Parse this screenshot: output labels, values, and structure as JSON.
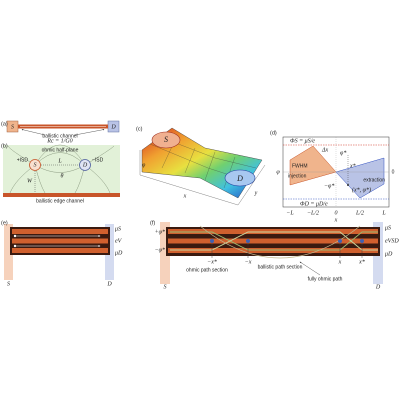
{
  "panels": {
    "a": {
      "label": "(a)",
      "source": "S",
      "drain": "D",
      "caption": "ballistic channel"
    },
    "b": {
      "label": "(b)",
      "resistance": "Rc = 1/G0",
      "region": "ohmic half-plane",
      "source": "S",
      "drain": "D",
      "current_in": "+ISD",
      "current_out": "−ISD",
      "width": "W",
      "length": "L",
      "angle": "θ",
      "edge": "ballistic edge channel"
    },
    "c": {
      "label": "(c)",
      "source": "S",
      "drain": "D",
      "z_axis": "φ",
      "x_axis": "x",
      "y_axis": "y"
    },
    "d": {
      "label": "(d)",
      "phi_s": "ΦS = μS/e",
      "phi_d": "ΦD = μD/e",
      "fwhm": "FWHM",
      "injection": "injection",
      "extraction": "extraction",
      "dx": "Δx",
      "phi_star": "φ*",
      "x_star": "x*",
      "point": "(x*, φ*)",
      "neg_phi_star": "−φ*",
      "y_axis": "φ",
      "zero_right": "0",
      "xticks": [
        "−L",
        "−L/2",
        "0",
        "L/2",
        "L"
      ],
      "x_axis": "x"
    },
    "e": {
      "label": "(e)",
      "source": "S",
      "drain": "D",
      "mu_s": "μS",
      "ev": "eV",
      "mu_d": "μD"
    },
    "f": {
      "label": "(f)",
      "pos_phi": "+φ*",
      "neg_phi": "−φ*",
      "mu_s": "μS",
      "ev": "eVSD",
      "mu_d": "μD",
      "neg_x_star": "−x*",
      "neg_x": "−x",
      "x": "x",
      "x_star": "x*",
      "ohmic": "ohmic path section",
      "ballistic": "ballistic path section",
      "fully": "fully ohmic path",
      "source": "S",
      "drain": "D"
    }
  }
}
